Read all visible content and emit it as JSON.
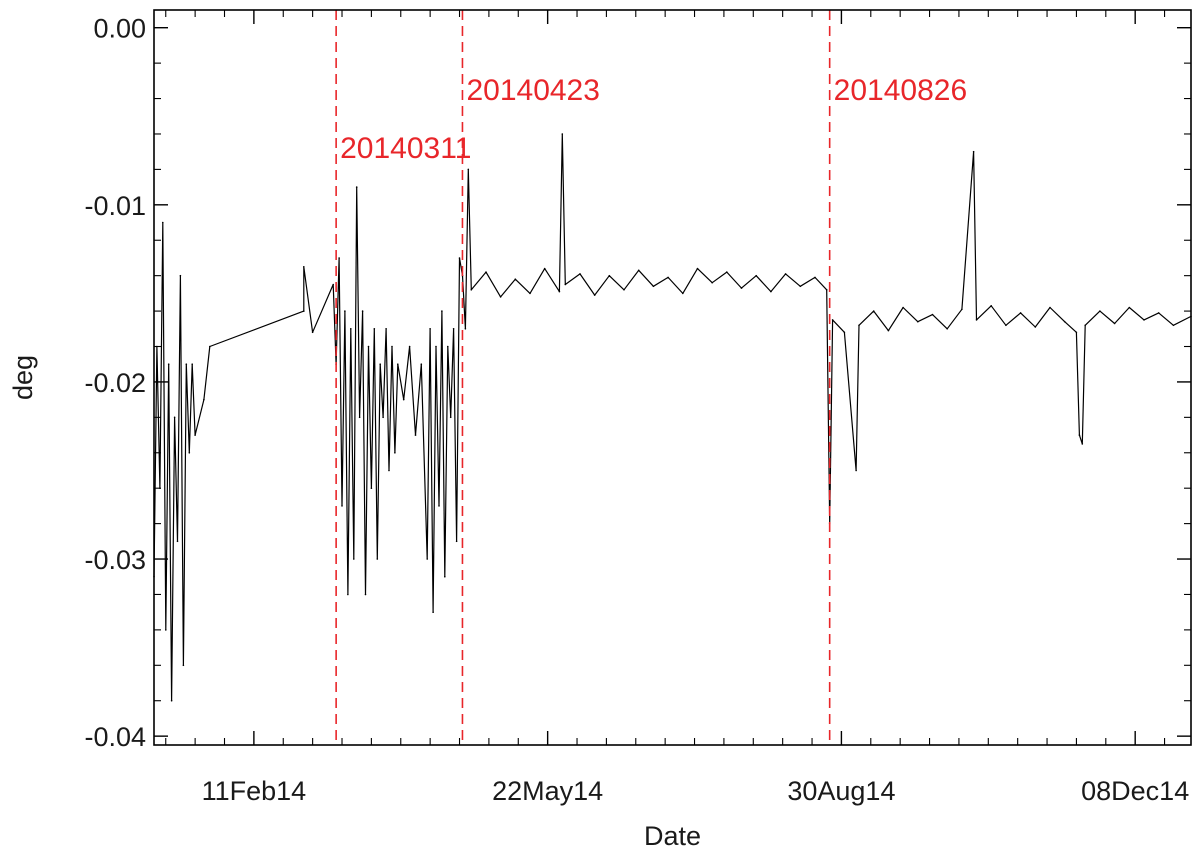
{
  "chart_data": {
    "type": "line",
    "xlabel": "Date",
    "ylabel": "deg",
    "xlim": [
      "2014-01-08",
      "2014-12-27"
    ],
    "ylim": [
      -0.0405,
      0.001
    ],
    "x_ticks": [
      {
        "date": "2014-02-11",
        "label": "11Feb14"
      },
      {
        "date": "2014-05-22",
        "label": "22May14"
      },
      {
        "date": "2014-08-30",
        "label": "30Aug14"
      },
      {
        "date": "2014-12-08",
        "label": "08Dec14"
      }
    ],
    "y_ticks": [
      {
        "value": 0.0,
        "label": "0.00"
      },
      {
        "value": -0.01,
        "label": "-0.01"
      },
      {
        "value": -0.02,
        "label": "-0.02"
      },
      {
        "value": -0.03,
        "label": "-0.03"
      },
      {
        "value": -0.04,
        "label": "-0.04"
      }
    ],
    "vlines": [
      {
        "date": "2014-03-11",
        "label": "20140311",
        "color": "#e8262a"
      },
      {
        "date": "2014-04-23",
        "label": "20140423",
        "color": "#e8262a"
      },
      {
        "date": "2014-08-26",
        "label": "20140826",
        "color": "#e8262a"
      }
    ],
    "series": [
      {
        "color": "#000000",
        "points": [
          [
            "2014-01-08",
            -0.031
          ],
          [
            "2014-01-09",
            -0.018
          ],
          [
            "2014-01-10",
            -0.026
          ],
          [
            "2014-01-11",
            -0.011
          ],
          [
            "2014-01-12",
            -0.034
          ],
          [
            "2014-01-13",
            -0.019
          ],
          [
            "2014-01-14",
            -0.038
          ],
          [
            "2014-01-15",
            -0.022
          ],
          [
            "2014-01-16",
            -0.029
          ],
          [
            "2014-01-17",
            -0.014
          ],
          [
            "2014-01-18",
            -0.036
          ],
          [
            "2014-01-19",
            -0.019
          ],
          [
            "2014-01-20",
            -0.024
          ],
          [
            "2014-01-21",
            -0.019
          ],
          [
            "2014-01-22",
            -0.023
          ],
          [
            "2014-01-25",
            -0.021
          ],
          [
            "2014-01-27",
            -0.018
          ],
          [
            "2014-02-28",
            -0.016
          ],
          [
            "2014-02-28",
            -0.0135
          ],
          [
            "2014-03-03",
            -0.0172
          ],
          [
            "2014-03-10",
            -0.0145
          ],
          [
            "2014-03-11",
            -0.019
          ],
          [
            "2014-03-12",
            -0.013
          ],
          [
            "2014-03-13",
            -0.027
          ],
          [
            "2014-03-14",
            -0.016
          ],
          [
            "2014-03-15",
            -0.032
          ],
          [
            "2014-03-16",
            -0.017
          ],
          [
            "2014-03-17",
            -0.03
          ],
          [
            "2014-03-18",
            -0.009
          ],
          [
            "2014-03-19",
            -0.022
          ],
          [
            "2014-03-20",
            -0.016
          ],
          [
            "2014-03-21",
            -0.032
          ],
          [
            "2014-03-22",
            -0.018
          ],
          [
            "2014-03-23",
            -0.026
          ],
          [
            "2014-03-24",
            -0.017
          ],
          [
            "2014-03-25",
            -0.03
          ],
          [
            "2014-03-26",
            -0.019
          ],
          [
            "2014-03-27",
            -0.022
          ],
          [
            "2014-03-28",
            -0.017
          ],
          [
            "2014-03-29",
            -0.025
          ],
          [
            "2014-03-30",
            -0.018
          ],
          [
            "2014-03-31",
            -0.024
          ],
          [
            "2014-04-01",
            -0.019
          ],
          [
            "2014-04-03",
            -0.021
          ],
          [
            "2014-04-05",
            -0.018
          ],
          [
            "2014-04-07",
            -0.023
          ],
          [
            "2014-04-09",
            -0.019
          ],
          [
            "2014-04-11",
            -0.03
          ],
          [
            "2014-04-12",
            -0.017
          ],
          [
            "2014-04-13",
            -0.033
          ],
          [
            "2014-04-14",
            -0.018
          ],
          [
            "2014-04-15",
            -0.027
          ],
          [
            "2014-04-16",
            -0.016
          ],
          [
            "2014-04-17",
            -0.031
          ],
          [
            "2014-04-18",
            -0.018
          ],
          [
            "2014-04-19",
            -0.022
          ],
          [
            "2014-04-20",
            -0.017
          ],
          [
            "2014-04-21",
            -0.029
          ],
          [
            "2014-04-22",
            -0.013
          ],
          [
            "2014-04-23",
            -0.014
          ],
          [
            "2014-04-24",
            -0.017
          ],
          [
            "2014-04-25",
            -0.008
          ],
          [
            "2014-04-26",
            -0.0148
          ],
          [
            "2014-05-01",
            -0.0138
          ],
          [
            "2014-05-06",
            -0.0152
          ],
          [
            "2014-05-11",
            -0.0142
          ],
          [
            "2014-05-16",
            -0.015
          ],
          [
            "2014-05-21",
            -0.0136
          ],
          [
            "2014-05-26",
            -0.0149
          ],
          [
            "2014-05-27",
            -0.006
          ],
          [
            "2014-05-28",
            -0.0145
          ],
          [
            "2014-06-02",
            -0.0139
          ],
          [
            "2014-06-07",
            -0.0151
          ],
          [
            "2014-06-12",
            -0.014
          ],
          [
            "2014-06-17",
            -0.0148
          ],
          [
            "2014-06-22",
            -0.0137
          ],
          [
            "2014-06-27",
            -0.0146
          ],
          [
            "2014-07-02",
            -0.0141
          ],
          [
            "2014-07-07",
            -0.015
          ],
          [
            "2014-07-12",
            -0.0136
          ],
          [
            "2014-07-17",
            -0.0144
          ],
          [
            "2014-07-22",
            -0.0138
          ],
          [
            "2014-07-27",
            -0.0147
          ],
          [
            "2014-08-01",
            -0.014
          ],
          [
            "2014-08-06",
            -0.0149
          ],
          [
            "2014-08-11",
            -0.0139
          ],
          [
            "2014-08-16",
            -0.0146
          ],
          [
            "2014-08-21",
            -0.0141
          ],
          [
            "2014-08-25",
            -0.0148
          ],
          [
            "2014-08-26",
            -0.028
          ],
          [
            "2014-08-27",
            -0.0165
          ],
          [
            "2014-08-31",
            -0.0172
          ],
          [
            "2014-09-04",
            -0.025
          ],
          [
            "2014-09-05",
            -0.0168
          ],
          [
            "2014-09-10",
            -0.016
          ],
          [
            "2014-09-15",
            -0.0171
          ],
          [
            "2014-09-20",
            -0.0158
          ],
          [
            "2014-09-25",
            -0.0166
          ],
          [
            "2014-09-30",
            -0.0162
          ],
          [
            "2014-10-05",
            -0.017
          ],
          [
            "2014-10-10",
            -0.0159
          ],
          [
            "2014-10-14",
            -0.007
          ],
          [
            "2014-10-15",
            -0.0165
          ],
          [
            "2014-10-20",
            -0.0157
          ],
          [
            "2014-10-25",
            -0.0168
          ],
          [
            "2014-10-30",
            -0.0161
          ],
          [
            "2014-11-04",
            -0.0169
          ],
          [
            "2014-11-09",
            -0.0158
          ],
          [
            "2014-11-14",
            -0.0166
          ],
          [
            "2014-11-18",
            -0.0172
          ],
          [
            "2014-11-19",
            -0.023
          ],
          [
            "2014-11-20",
            -0.0235
          ],
          [
            "2014-11-21",
            -0.0168
          ],
          [
            "2014-11-26",
            -0.016
          ],
          [
            "2014-12-01",
            -0.0167
          ],
          [
            "2014-12-06",
            -0.0158
          ],
          [
            "2014-12-11",
            -0.0165
          ],
          [
            "2014-12-16",
            -0.0161
          ],
          [
            "2014-12-21",
            -0.0168
          ],
          [
            "2014-12-27",
            -0.0163
          ]
        ]
      }
    ]
  }
}
